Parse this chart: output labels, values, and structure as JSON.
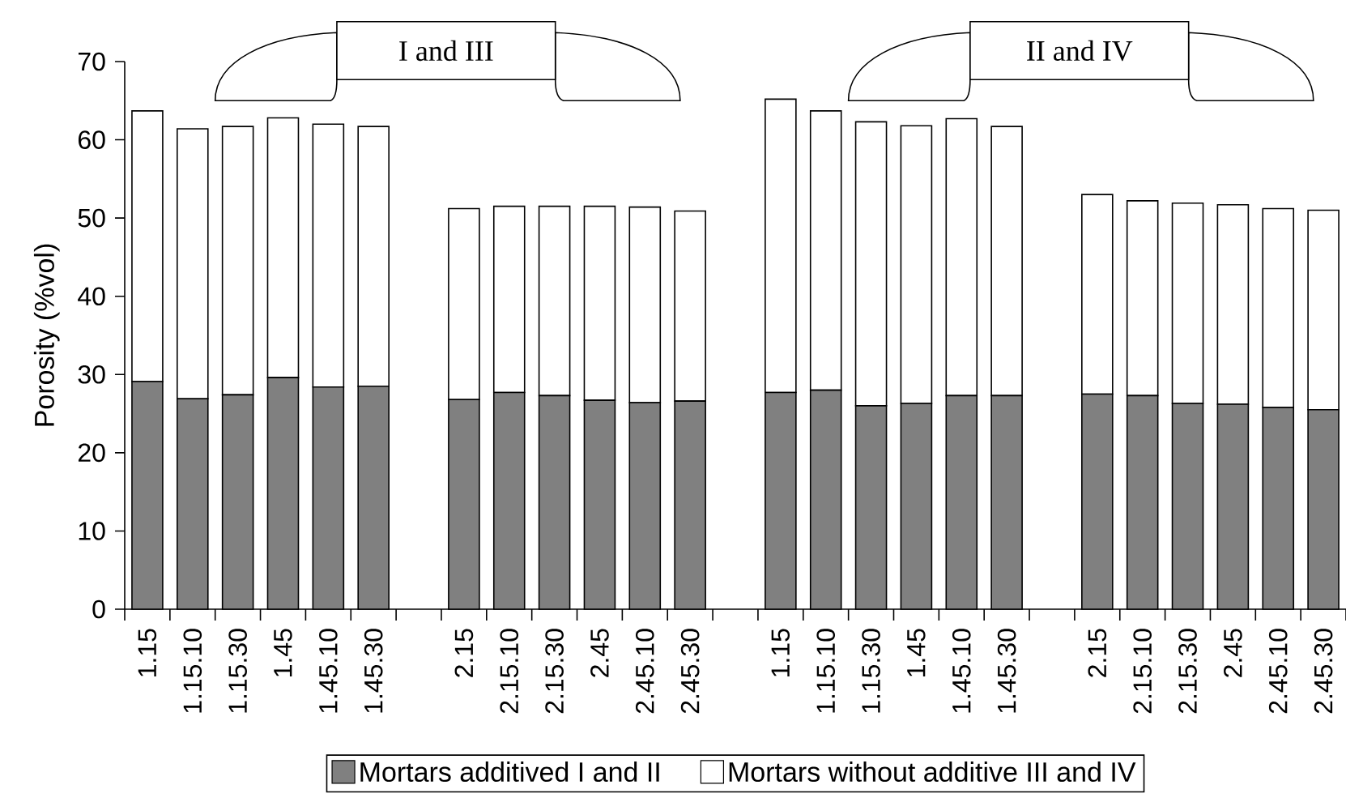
{
  "chart_data": {
    "type": "bar",
    "stacked": true,
    "ylabel": "Porosity (%vol)",
    "categories": [
      "1.15",
      "1.15.10",
      "1.15.30",
      "1.45",
      "1.45.10",
      "1.45.30",
      null,
      "2.15",
      "2.15.10",
      "2.15.30",
      "2.45",
      "2.45.10",
      "2.45.30",
      null,
      "1.15",
      "1.15.10",
      "1.15.30",
      "1.45",
      "1.45.10",
      "1.45.30",
      null,
      "2.15",
      "2.15.10",
      "2.15.30",
      "2.45",
      "2.45.10",
      "2.45.30"
    ],
    "series": [
      {
        "name": "Mortars additived I and II",
        "color": "#808080",
        "values": [
          29.1,
          26.9,
          27.4,
          29.6,
          28.4,
          28.5,
          null,
          26.8,
          27.7,
          27.3,
          26.7,
          26.4,
          26.6,
          null,
          27.7,
          28.0,
          26.0,
          26.3,
          27.3,
          27.3,
          null,
          27.5,
          27.3,
          26.3,
          26.2,
          25.8,
          25.5
        ]
      },
      {
        "name": "Mortars without additive III and IV",
        "color": "#ffffff",
        "values": [
          34.6,
          34.5,
          34.3,
          33.2,
          33.6,
          33.2,
          null,
          24.4,
          23.8,
          24.2,
          24.8,
          25.0,
          24.3,
          null,
          37.5,
          35.7,
          36.3,
          35.5,
          35.4,
          34.4,
          null,
          25.5,
          24.9,
          25.6,
          25.5,
          25.4,
          25.5
        ]
      }
    ],
    "ylim": [
      0,
      70
    ],
    "yticks": [
      0,
      10,
      20,
      30,
      40,
      50,
      60,
      70
    ],
    "legend": "bottom",
    "annotations": [
      "I and III",
      "II and IV"
    ]
  }
}
